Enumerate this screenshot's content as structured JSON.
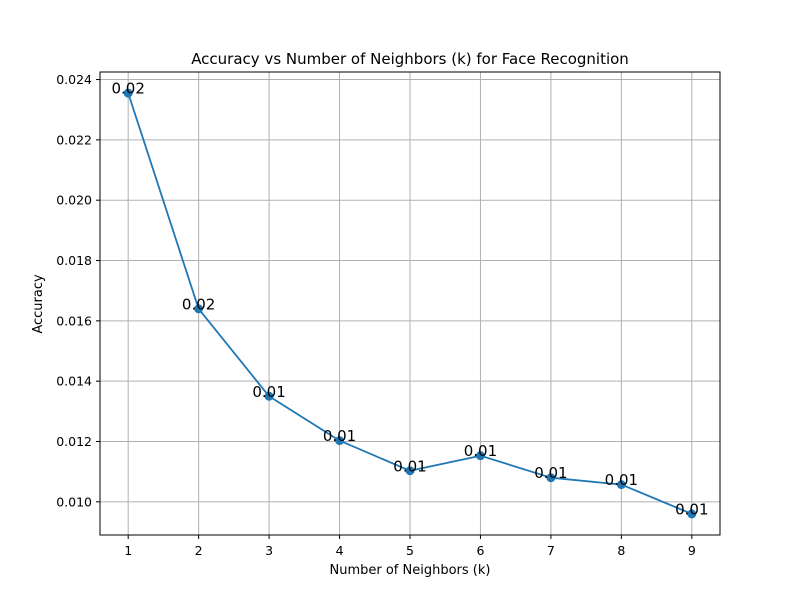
{
  "chart_data": {
    "type": "line",
    "title": "Accuracy vs Number of Neighbors (k) for Face Recognition",
    "xlabel": "Number of Neighbors (k)",
    "ylabel": "Accuracy",
    "x": [
      1,
      2,
      3,
      4,
      5,
      6,
      7,
      8,
      9
    ],
    "y": [
      0.02355,
      0.0164,
      0.0135,
      0.01203,
      0.01103,
      0.01153,
      0.0108,
      0.01057,
      0.0096
    ],
    "data_labels": [
      "0.02",
      "0.02",
      "0.01",
      "0.01",
      "0.01",
      "0.01",
      "0.01",
      "0.01",
      "0.01"
    ],
    "xticks": [
      "1",
      "2",
      "3",
      "4",
      "5",
      "6",
      "7",
      "8",
      "9"
    ],
    "yticks": [
      "0.010",
      "0.012",
      "0.014",
      "0.016",
      "0.018",
      "0.020",
      "0.022",
      "0.024"
    ],
    "xlim": [
      0.6,
      9.4
    ],
    "ylim": [
      0.0089,
      0.02425
    ],
    "grid": true,
    "line_color": "#1f77b4",
    "grid_color": "#b0b0b0"
  }
}
